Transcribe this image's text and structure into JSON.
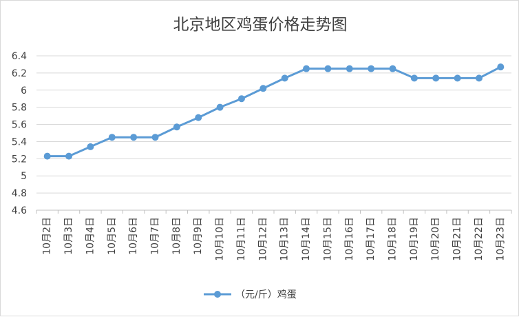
{
  "chart_data": {
    "type": "line",
    "title": "北京地区鸡蛋价格走势图",
    "categories": [
      "10月2日",
      "10月3日",
      "10月4日",
      "10月5日",
      "10月6日",
      "10月7日",
      "10月8日",
      "10月9日",
      "10月10日",
      "10月11日",
      "10月12日",
      "10月13日",
      "10月14日",
      "10月15日",
      "10月16日",
      "10月17日",
      "10月18日",
      "10月19日",
      "10月20日",
      "10月21日",
      "10月22日",
      "10月23日"
    ],
    "series": [
      {
        "name": "（元/斤）鸡蛋",
        "color": "#5b9bd5",
        "values": [
          5.23,
          5.23,
          5.34,
          5.45,
          5.45,
          5.45,
          5.57,
          5.68,
          5.8,
          5.9,
          6.02,
          6.14,
          6.25,
          6.25,
          6.25,
          6.25,
          6.25,
          6.14,
          6.14,
          6.14,
          6.14,
          6.27
        ]
      }
    ],
    "ylim": [
      4.6,
      6.4
    ],
    "yticks": [
      "4.6",
      "4.8",
      "5",
      "5.2",
      "5.4",
      "5.6",
      "5.8",
      "6",
      "6.2",
      "6.4"
    ],
    "grid": true,
    "legend_position": "bottom",
    "xlabel": "",
    "ylabel": ""
  }
}
